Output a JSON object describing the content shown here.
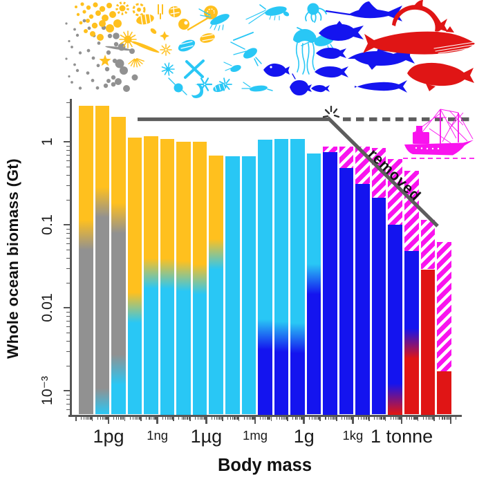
{
  "palette": {
    "bacteria": "#919191",
    "phytoplankton": "#FFC01E",
    "zooplankton": "#29C7F5",
    "fish": "#1414EF",
    "mammals": "#E01515",
    "removed": "#F913EE",
    "axis": "#555555",
    "annotation": "#5D5D5D",
    "text": "#1B1B1B"
  },
  "silhouette_band": {
    "icons": [
      "bacteria-dots-icon",
      "phytoplankton-icons",
      "zooplankton-icons",
      "fish-icons",
      "marine-mammal-icons",
      "fishing-trawler-icon"
    ]
  },
  "chart_data": {
    "type": "bar",
    "title": "",
    "xlabel": "Body mass",
    "ylabel": "Whole ocean biomass (Gt)",
    "x_scale": "log",
    "y_scale": "log",
    "ylim": [
      0.00052,
      3.0
    ],
    "x_ticks": [
      {
        "label": "1pg",
        "size": "large"
      },
      {
        "label": "1ng",
        "size": "small"
      },
      {
        "label": "1µg",
        "size": "large"
      },
      {
        "label": "1mg",
        "size": "small"
      },
      {
        "label": "1g",
        "size": "large"
      },
      {
        "label": "1kg",
        "size": "small"
      },
      {
        "label": "1 tonne",
        "size": "large"
      }
    ],
    "y_ticks": [
      {
        "label": "1",
        "value": 1
      },
      {
        "label": "0.1",
        "value": 0.1
      },
      {
        "label": "0.01",
        "value": 0.01
      },
      {
        "label": "10⁻³",
        "value": 0.001
      }
    ],
    "bins": "23 consecutive body-mass decades, one bar per decade from below 1pg to above 1 tonne",
    "bars": [
      {
        "segments": [
          {
            "group": "phytoplankton",
            "top_gt": 2.7
          },
          {
            "group": "bacteria",
            "top_gt": 0.075
          }
        ]
      },
      {
        "segments": [
          {
            "group": "phytoplankton",
            "top_gt": 2.7
          },
          {
            "group": "bacteria",
            "top_gt": 0.185
          },
          {
            "group": "zooplankton",
            "top_gt": 0.0007
          }
        ]
      },
      {
        "segments": [
          {
            "group": "phytoplankton",
            "top_gt": 2.0
          },
          {
            "group": "bacteria",
            "top_gt": 0.12
          },
          {
            "group": "zooplankton",
            "top_gt": 0.0018
          }
        ]
      },
      {
        "segments": [
          {
            "group": "phytoplankton",
            "top_gt": 1.12
          },
          {
            "group": "zooplankton",
            "top_gt": 0.01
          }
        ]
      },
      {
        "segments": [
          {
            "group": "phytoplankton",
            "top_gt": 1.17
          },
          {
            "group": "zooplankton",
            "top_gt": 0.026
          }
        ]
      },
      {
        "segments": [
          {
            "group": "phytoplankton",
            "top_gt": 1.09
          },
          {
            "group": "zooplankton",
            "top_gt": 0.026
          }
        ]
      },
      {
        "segments": [
          {
            "group": "phytoplankton",
            "top_gt": 1.0
          },
          {
            "group": "zooplankton",
            "top_gt": 0.024
          }
        ]
      },
      {
        "segments": [
          {
            "group": "phytoplankton",
            "top_gt": 1.0
          },
          {
            "group": "zooplankton",
            "top_gt": 0.022
          }
        ]
      },
      {
        "segments": [
          {
            "group": "phytoplankton",
            "top_gt": 0.68
          },
          {
            "group": "zooplankton",
            "top_gt": 0.044
          }
        ]
      },
      {
        "segments": [
          {
            "group": "zooplankton",
            "top_gt": 0.67
          }
        ]
      },
      {
        "segments": [
          {
            "group": "zooplankton",
            "top_gt": 0.67
          }
        ]
      },
      {
        "segments": [
          {
            "group": "zooplankton",
            "top_gt": 1.07
          },
          {
            "group": "fish",
            "top_gt": 0.0048
          }
        ]
      },
      {
        "segments": [
          {
            "group": "zooplankton",
            "top_gt": 1.09
          },
          {
            "group": "fish",
            "top_gt": 0.0045
          }
        ]
      },
      {
        "segments": [
          {
            "group": "zooplankton",
            "top_gt": 1.08
          },
          {
            "group": "fish",
            "top_gt": 0.0043
          }
        ]
      },
      {
        "segments": [
          {
            "group": "zooplankton",
            "top_gt": 0.72
          },
          {
            "group": "fish",
            "top_gt": 0.022
          }
        ]
      },
      {
        "segments": [
          {
            "group": "removed",
            "top_gt": 0.88
          },
          {
            "group": "fish",
            "top_gt": 0.75
          }
        ]
      },
      {
        "segments": [
          {
            "group": "removed",
            "top_gt": 0.88
          },
          {
            "group": "fish",
            "top_gt": 0.48
          }
        ]
      },
      {
        "segments": [
          {
            "group": "removed",
            "top_gt": 0.88
          },
          {
            "group": "fish",
            "top_gt": 0.31
          }
        ]
      },
      {
        "segments": [
          {
            "group": "removed",
            "top_gt": 0.85
          },
          {
            "group": "fish",
            "top_gt": 0.21
          }
        ]
      },
      {
        "segments": [
          {
            "group": "removed",
            "top_gt": 0.62
          },
          {
            "group": "fish",
            "top_gt": 0.1
          },
          {
            "group": "mammals",
            "top_gt": 0.0008
          }
        ]
      },
      {
        "segments": [
          {
            "group": "removed",
            "top_gt": 0.45
          },
          {
            "group": "fish",
            "top_gt": 0.048
          },
          {
            "group": "mammals",
            "top_gt": 0.0037
          }
        ]
      },
      {
        "segments": [
          {
            "group": "removed",
            "top_gt": 0.114
          },
          {
            "group": "mammals",
            "top_gt": 0.029
          }
        ]
      },
      {
        "segments": [
          {
            "group": "removed",
            "top_gt": 0.062
          },
          {
            "group": "mammals",
            "top_gt": 0.0017
          }
        ]
      }
    ],
    "annotations": {
      "removed_label": "removed",
      "flat_reference_level_gt": 1.9
    }
  }
}
